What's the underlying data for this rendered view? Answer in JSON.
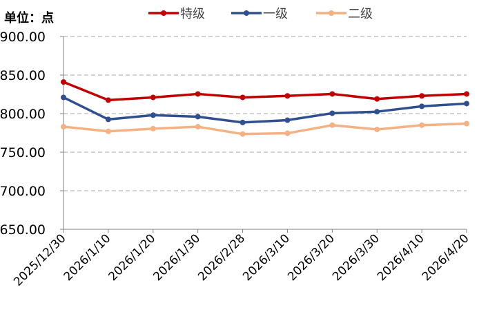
{
  "unit_label": "单位：点",
  "chart_data": {
    "type": "line",
    "title": "",
    "xlabel": "",
    "ylabel": "单位：点",
    "categories": [
      "2025/12/30",
      "2026/1/10",
      "2026/1/20",
      "2026/1/30",
      "2026/2/28",
      "2026/3/10",
      "2026/3/20",
      "2026/3/30",
      "2026/4/10",
      "2026/4/20"
    ],
    "ylim": [
      650,
      900
    ],
    "yticks": [
      "900.00",
      "850.00",
      "800.00",
      "750.00",
      "700.00",
      "650.00"
    ],
    "grid": "horizontal dashed",
    "legend_position": "top-right",
    "series": [
      {
        "name": "特级",
        "color": "#C00000",
        "values": [
          841,
          817.5,
          821,
          825.5,
          821,
          823,
          825.5,
          819,
          823,
          825.5
        ]
      },
      {
        "name": "一级",
        "color": "#2F4F8F",
        "values": [
          821,
          792.5,
          798,
          796,
          788.5,
          791.5,
          800.5,
          802.5,
          809.5,
          813
        ]
      },
      {
        "name": "二级",
        "color": "#F4B183",
        "values": [
          783,
          777,
          780.5,
          783,
          773.5,
          774.5,
          785,
          779.5,
          785,
          787
        ]
      }
    ]
  }
}
